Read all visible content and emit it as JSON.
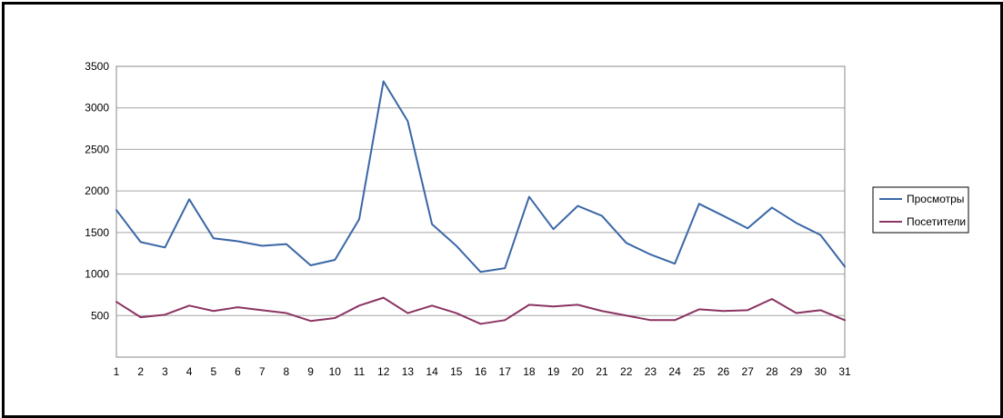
{
  "chart_data": {
    "type": "line",
    "title": "",
    "xlabel": "",
    "ylabel": "",
    "categories": [
      1,
      2,
      3,
      4,
      5,
      6,
      7,
      8,
      9,
      10,
      11,
      12,
      13,
      14,
      15,
      16,
      17,
      18,
      19,
      20,
      21,
      22,
      23,
      24,
      25,
      26,
      27,
      28,
      29,
      30,
      31
    ],
    "ylim": [
      0,
      3500
    ],
    "yticks": [
      500,
      1000,
      1500,
      2000,
      2500,
      3000,
      3500
    ],
    "grid": true,
    "legend_position": "right",
    "series": [
      {
        "name": "Просмотры",
        "color": "#3a67a6",
        "values": [
          1770,
          1385,
          1320,
          1900,
          1430,
          1395,
          1340,
          1360,
          1105,
          1170,
          1660,
          3320,
          2840,
          1600,
          1340,
          1025,
          1070,
          1930,
          1540,
          1820,
          1700,
          1375,
          1235,
          1125,
          1845,
          1700,
          1550,
          1800,
          1615,
          1470,
          1090
        ]
      },
      {
        "name": "Посетители",
        "color": "#8b3461",
        "values": [
          665,
          480,
          510,
          620,
          555,
          600,
          565,
          530,
          435,
          470,
          620,
          715,
          530,
          620,
          530,
          400,
          445,
          630,
          610,
          630,
          555,
          500,
          445,
          445,
          575,
          555,
          565,
          700,
          530,
          565,
          445
        ]
      }
    ]
  }
}
